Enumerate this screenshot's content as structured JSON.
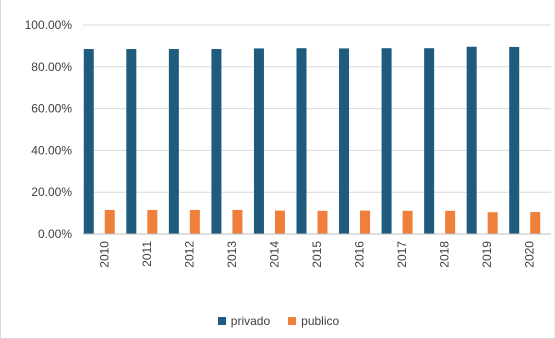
{
  "chart_data": {
    "type": "bar",
    "title": "",
    "xlabel": "",
    "ylabel": "",
    "categories": [
      "2010",
      "2011",
      "2012",
      "2013",
      "2014",
      "2015",
      "2016",
      "2017",
      "2018",
      "2019",
      "2020"
    ],
    "series": [
      {
        "name": "privado",
        "color": "#1f5b7d",
        "values": [
          88.5,
          88.5,
          88.5,
          88.5,
          88.8,
          88.9,
          88.8,
          88.9,
          88.9,
          89.6,
          89.5
        ]
      },
      {
        "name": "publico",
        "color": "#f07f3c",
        "values": [
          11.5,
          11.5,
          11.5,
          11.5,
          11.2,
          11.1,
          11.2,
          11.1,
          11.1,
          10.4,
          10.5
        ]
      }
    ],
    "ylim": [
      0,
      100
    ],
    "yticks": [
      "0.00%",
      "20.00%",
      "40.00%",
      "60.00%",
      "80.00%",
      "100.00%"
    ],
    "grid": true,
    "legend_position": "bottom"
  }
}
